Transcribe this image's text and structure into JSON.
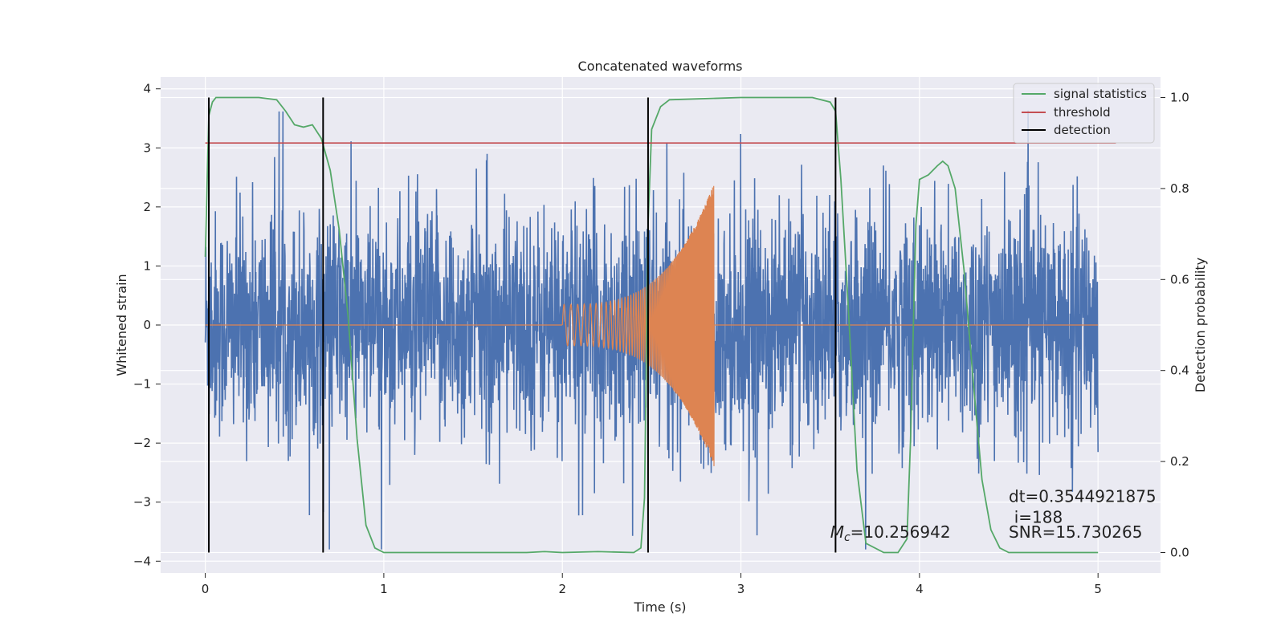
{
  "chart_data": {
    "type": "line",
    "title": "Concatenated waveforms",
    "xlabel": "Time (s)",
    "ylabel": "Whitened strain",
    "y2label": "Detection probability",
    "xlim": [
      -0.25,
      5.35
    ],
    "ylim": [
      -4.2,
      4.2
    ],
    "y2lim": [
      -0.045,
      1.045
    ],
    "xticks": [
      0,
      1,
      2,
      3,
      4,
      5
    ],
    "yticks": [
      -4,
      -3,
      -2,
      -1,
      0,
      1,
      2,
      3,
      4
    ],
    "y2ticks": [
      0.0,
      0.2,
      0.4,
      0.6,
      0.8,
      1.0
    ],
    "y2tick_labels": [
      "0.0",
      "0.2",
      "0.4",
      "0.6",
      "0.8",
      "1.0"
    ],
    "grid": true,
    "legend_position": "top-right",
    "colors": {
      "plot_background": "#eaeaf2",
      "grid": "#ffffff",
      "strain": "#4c72b0",
      "waveform": "#dd8452",
      "signal_statistics": "#55a868",
      "threshold": "#c44e52",
      "detection": "#000000"
    },
    "series": [
      {
        "name": "signal statistics",
        "axis": "right",
        "x": [
          0.0,
          0.02,
          0.04,
          0.06,
          0.1,
          0.2,
          0.3,
          0.4,
          0.45,
          0.5,
          0.55,
          0.6,
          0.65,
          0.7,
          0.75,
          0.8,
          0.85,
          0.9,
          0.95,
          1.0,
          1.2,
          1.5,
          1.8,
          1.9,
          2.0,
          2.2,
          2.4,
          2.44,
          2.46,
          2.48,
          2.5,
          2.55,
          2.6,
          3.0,
          3.4,
          3.5,
          3.53,
          3.56,
          3.6,
          3.65,
          3.7,
          3.8,
          3.88,
          3.93,
          3.95,
          3.98,
          4.0,
          4.05,
          4.1,
          4.13,
          4.16,
          4.2,
          4.25,
          4.3,
          4.35,
          4.4,
          4.45,
          4.5,
          4.6,
          5.0
        ],
        "y": [
          0.65,
          0.96,
          0.99,
          1.0,
          1.0,
          1.0,
          1.0,
          0.995,
          0.97,
          0.94,
          0.935,
          0.94,
          0.91,
          0.84,
          0.71,
          0.52,
          0.25,
          0.06,
          0.01,
          0.0,
          0.0,
          0.0,
          0.0,
          0.002,
          0.0,
          0.002,
          0.0,
          0.01,
          0.12,
          0.72,
          0.93,
          0.98,
          0.995,
          1.0,
          1.0,
          0.99,
          0.97,
          0.82,
          0.55,
          0.18,
          0.02,
          0.0,
          0.0,
          0.03,
          0.25,
          0.72,
          0.82,
          0.83,
          0.85,
          0.86,
          0.85,
          0.8,
          0.62,
          0.38,
          0.16,
          0.05,
          0.01,
          0.0,
          0.0,
          0.0
        ]
      },
      {
        "name": "threshold",
        "axis": "right",
        "x": [
          0.0,
          5.1
        ],
        "y": [
          0.9,
          0.9
        ]
      },
      {
        "name": "detection",
        "axis": "right",
        "x_positions": [
          0.02,
          0.66,
          2.48,
          3.53
        ],
        "y_range": [
          0.0,
          1.0
        ]
      }
    ],
    "strain_noise": {
      "x_range": [
        0.0,
        5.0
      ],
      "typical_amplitude": 1.0,
      "peak_range": [
        -3.8,
        3.8
      ]
    },
    "injected_waveform": {
      "x_start": 2.0,
      "x_end": 2.85,
      "amplitude_start": 0.35,
      "amplitude_end": 2.4
    },
    "annotations": [
      {
        "text": "dt=0.3544921875",
        "x": 4.5,
        "y": -3.0
      },
      {
        "text": "i=188",
        "x": 4.53,
        "y": -3.35
      },
      {
        "text": "=10.256942",
        "prefix": "M",
        "subscript": "c",
        "x": 3.5,
        "y": -3.6
      },
      {
        "text": "SNR=15.730265",
        "x": 4.5,
        "y": -3.6
      }
    ]
  }
}
